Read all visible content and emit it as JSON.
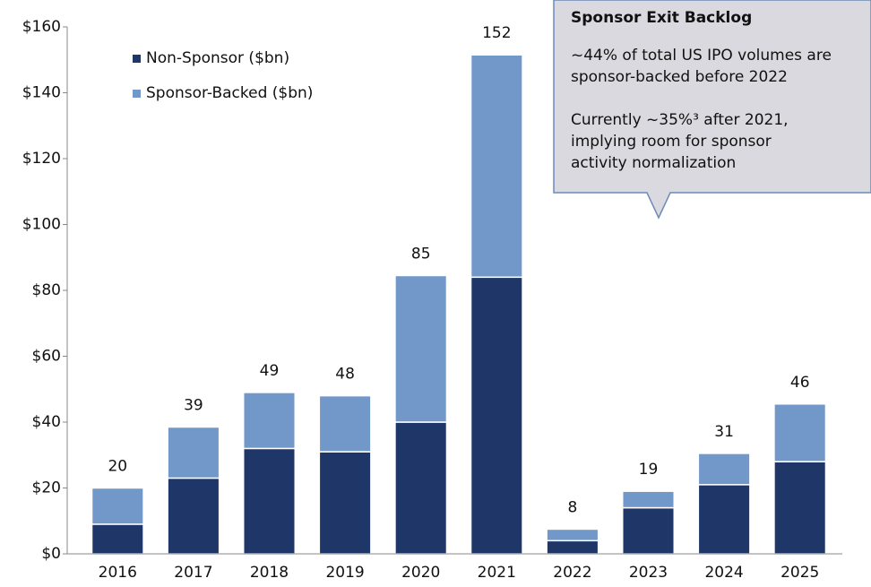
{
  "chart_data": {
    "type": "stacked_bar",
    "categories": [
      "2016",
      "2017",
      "2018",
      "2019",
      "2020",
      "2021",
      "2022",
      "2023",
      "2024",
      "2025"
    ],
    "series": [
      {
        "name": "Non-Sponsor ($bn)",
        "color": "#1f3768",
        "values": [
          9,
          23,
          32,
          31,
          40,
          84,
          4,
          14,
          21,
          28
        ]
      },
      {
        "name": "Sponsor-Backed ($bn)",
        "color": "#7198c8",
        "values": [
          11,
          15.5,
          17,
          17,
          44.5,
          67.5,
          3.5,
          5,
          9.5,
          17.5
        ]
      }
    ],
    "totals": [
      20,
      39,
      49,
      48,
      85,
      152,
      8,
      19,
      31,
      46
    ],
    "ylim": [
      0,
      160
    ],
    "yticks": [
      {
        "value": 0,
        "label": "$0"
      },
      {
        "value": 20,
        "label": "$20"
      },
      {
        "value": 40,
        "label": "$40"
      },
      {
        "value": 60,
        "label": "$60"
      },
      {
        "value": 80,
        "label": "$80"
      },
      {
        "value": 100,
        "label": "$100"
      },
      {
        "value": 120,
        "label": "$120"
      },
      {
        "value": 140,
        "label": "$140"
      },
      {
        "value": 160,
        "label": "$160"
      }
    ],
    "callout": {
      "title": "Sponsor Exit Backlog",
      "lines": [
        "~44% of total US IPO volumes are",
        "sponsor-backed before 2022",
        "Currently ~35%³ after 2021,",
        "implying room for sponsor",
        "activity normalization"
      ]
    }
  }
}
